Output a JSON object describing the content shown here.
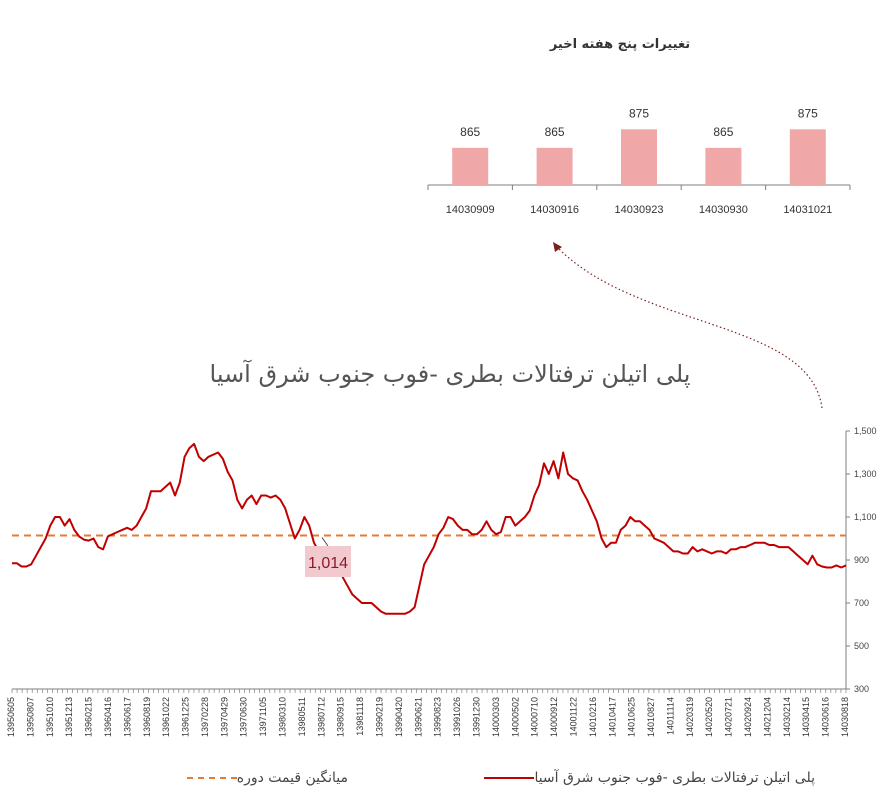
{
  "colors": {
    "line": "#c00000",
    "average": "#e07b39",
    "bar": "#f0a7a7",
    "axis": "#7f7f7f",
    "annotation_box": "#f2c9cf",
    "annotation_text": "#8b1a2b",
    "arrow": "#7b1f1f"
  },
  "icons": {
    "arrow": "dotted-curved-arrow-icon"
  },
  "chart_data": [
    {
      "type": "bar",
      "title": "تغییرات پنج هفته اخیر",
      "categories": [
        "14030909",
        "14030916",
        "14030923",
        "14030930",
        "14031021"
      ],
      "values": [
        865,
        865,
        875,
        865,
        875
      ],
      "value_labels": [
        "865",
        "865",
        "875",
        "865",
        "875"
      ],
      "ylim": [
        845,
        880
      ]
    },
    {
      "type": "line",
      "title": "پلی اتیلن ترفتالات بطری -فوب جنوب شرق آسیا",
      "ylim": [
        300,
        1500
      ],
      "yticks": [
        300,
        500,
        700,
        900,
        1100,
        1300,
        1500
      ],
      "ytick_labels": [
        "300",
        "500",
        "700",
        "900",
        "1,100",
        "1,300",
        "1,500"
      ],
      "x_tick_labels": [
        "13950605",
        "13950807",
        "13951010",
        "13951213",
        "13960215",
        "13960416",
        "13960617",
        "13960819",
        "13961022",
        "13961225",
        "13970228",
        "13970429",
        "13970630",
        "13971105",
        "13980310",
        "13980511",
        "13980712",
        "13980915",
        "13981118",
        "13990219",
        "13990420",
        "13990621",
        "13990823",
        "13991026",
        "13991230",
        "14000303",
        "14000502",
        "14000710",
        "14000912",
        "14001122",
        "14010216",
        "14010417",
        "14010625",
        "14010827",
        "14011114",
        "14020319",
        "14020520",
        "14020721",
        "14020924",
        "14021204",
        "14030214",
        "14030415",
        "14030616",
        "14030818"
      ],
      "series": [
        {
          "name": "پلی اتیلن ترفتالات بطری -فوب جنوب شرق آسیا",
          "values": [
            885,
            885,
            870,
            870,
            880,
            920,
            960,
            1000,
            1060,
            1100,
            1100,
            1060,
            1090,
            1040,
            1010,
            995,
            990,
            1000,
            960,
            950,
            1010,
            1020,
            1030,
            1040,
            1050,
            1040,
            1060,
            1100,
            1140,
            1220,
            1220,
            1220,
            1240,
            1260,
            1200,
            1260,
            1380,
            1420,
            1440,
            1380,
            1360,
            1380,
            1390,
            1400,
            1370,
            1310,
            1270,
            1180,
            1140,
            1180,
            1200,
            1160,
            1200,
            1200,
            1190,
            1200,
            1180,
            1140,
            1070,
            1000,
            1040,
            1100,
            1060,
            980,
            940,
            920,
            900,
            920,
            880,
            820,
            780,
            740,
            720,
            700,
            700,
            700,
            680,
            660,
            650,
            650,
            650,
            650,
            650,
            660,
            680,
            780,
            880,
            920,
            960,
            1020,
            1050,
            1100,
            1090,
            1060,
            1040,
            1040,
            1020,
            1020,
            1040,
            1080,
            1040,
            1020,
            1030,
            1100,
            1100,
            1060,
            1080,
            1100,
            1130,
            1200,
            1250,
            1350,
            1300,
            1360,
            1280,
            1400,
            1300,
            1280,
            1270,
            1220,
            1180,
            1130,
            1080,
            1000,
            960,
            980,
            980,
            1040,
            1060,
            1100,
            1080,
            1080,
            1060,
            1040,
            1000,
            990,
            980,
            960,
            940,
            940,
            930,
            930,
            960,
            940,
            950,
            940,
            930,
            940,
            940,
            930,
            950,
            950,
            960,
            960,
            970,
            980,
            980,
            980,
            970,
            970,
            960,
            960,
            960,
            940,
            920,
            900,
            880,
            920,
            880,
            870,
            865,
            865,
            875,
            865,
            875
          ]
        },
        {
          "name": "میانگین قیمت دوره",
          "values": [
            1014
          ]
        }
      ],
      "annotation": {
        "label": "1,014",
        "value": 1014
      },
      "legend": [
        {
          "label": "پلی اتیلن ترفتالات بطری -فوب جنوب شرق آسیا",
          "style": "solid"
        },
        {
          "label": "میانگین قیمت دوره",
          "style": "dashed"
        }
      ],
      "legend_position": "bottom"
    }
  ]
}
